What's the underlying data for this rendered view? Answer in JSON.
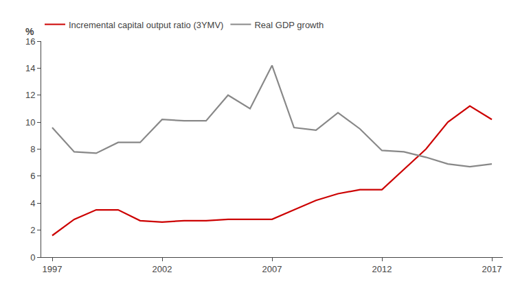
{
  "chart_data": {
    "type": "line",
    "ylabel": "%",
    "x": [
      1997,
      1998,
      1999,
      2000,
      2001,
      2002,
      2003,
      2004,
      2005,
      2006,
      2007,
      2008,
      2009,
      2010,
      2011,
      2012,
      2013,
      2014,
      2015,
      2016,
      2017
    ],
    "series": [
      {
        "name": "Incremental capital output ratio (3YMV)",
        "color": "#cc0000",
        "values": [
          1.6,
          2.8,
          3.5,
          3.5,
          2.7,
          2.6,
          2.7,
          2.7,
          2.8,
          2.8,
          2.8,
          3.5,
          4.2,
          4.7,
          5.0,
          5.0,
          6.5,
          8.0,
          10.0,
          11.2,
          10.2
        ]
      },
      {
        "name": "Real GDP growth",
        "color": "#888888",
        "values": [
          9.6,
          7.8,
          7.7,
          8.5,
          8.5,
          10.2,
          10.1,
          10.1,
          12.0,
          11.0,
          14.2,
          9.6,
          9.4,
          10.7,
          9.5,
          7.9,
          7.8,
          7.4,
          6.9,
          6.7,
          6.9
        ]
      }
    ],
    "xlim": [
      1996.5,
      2017.5
    ],
    "xticks": [
      1997,
      2002,
      2007,
      2012,
      2017
    ],
    "ylim": [
      0,
      16
    ],
    "yticks": [
      0,
      2,
      4,
      6,
      8,
      10,
      12,
      14,
      16
    ],
    "grid": false,
    "legend": "upper left"
  }
}
